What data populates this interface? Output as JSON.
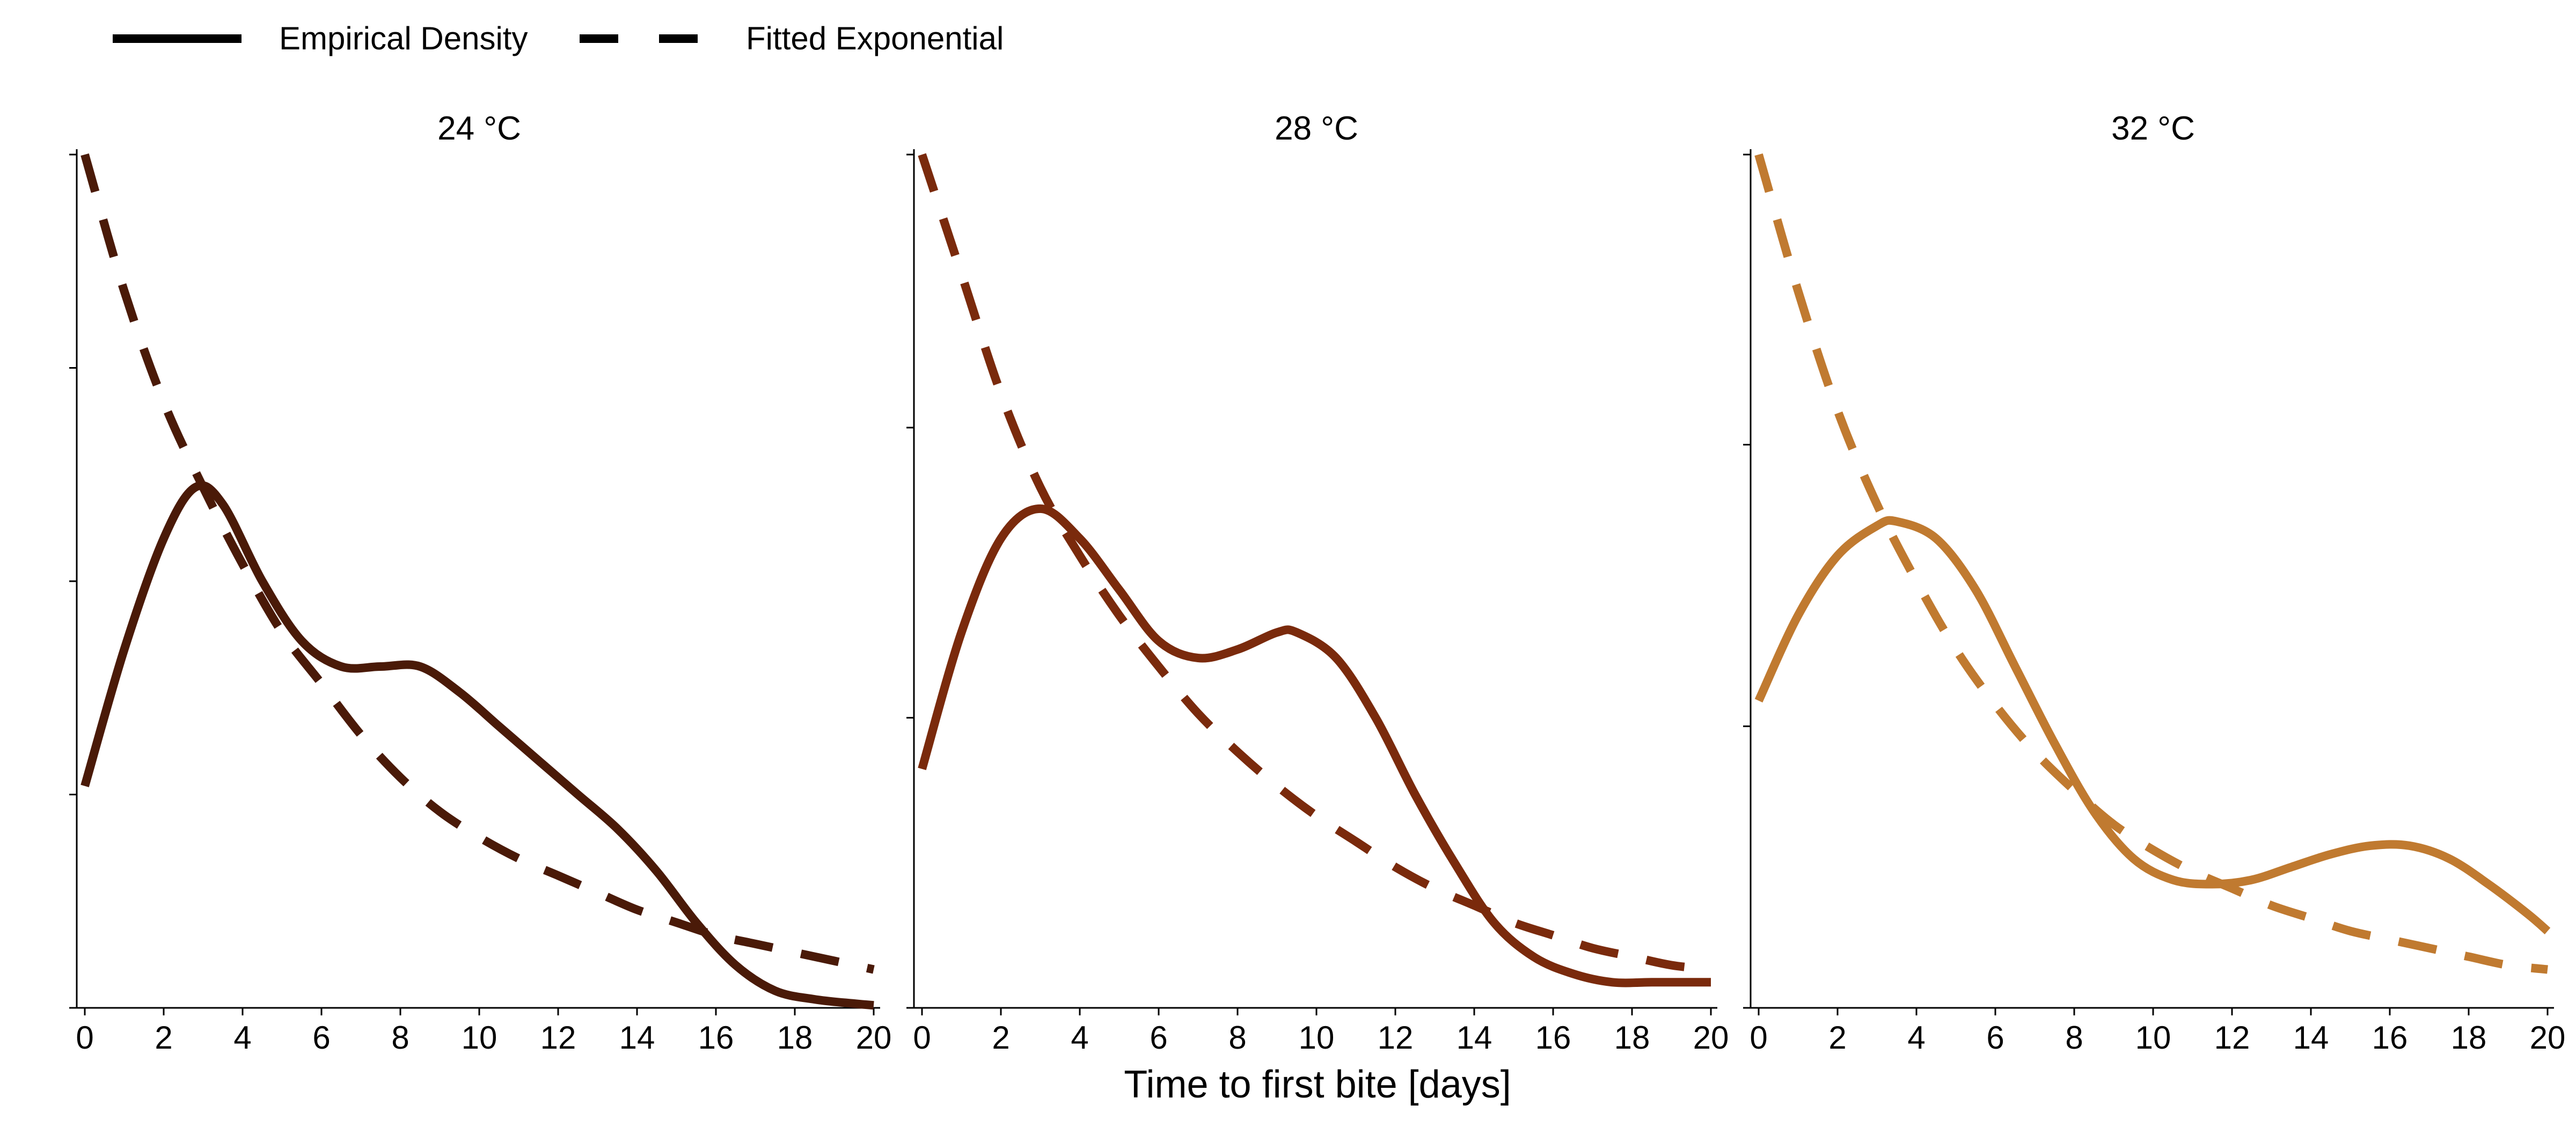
{
  "legend": {
    "solid_label": "Empirical Density",
    "dashed_label": "Fitted Exponential",
    "placement": "top-left"
  },
  "xlabel": "Time to first bite [days]",
  "chart_data": [
    {
      "type": "line",
      "title": "24 °C",
      "color": "#4a1a08",
      "x_ticks": [
        0,
        2,
        4,
        6,
        8,
        10,
        12,
        14,
        16,
        18,
        20
      ],
      "xlim": [
        0,
        20
      ],
      "ylim": [
        0,
        1.0
      ],
      "y_ticks": [
        0,
        0.25,
        0.5,
        0.75,
        1.0
      ],
      "series": [
        {
          "style": "solid",
          "x": [
            0,
            1,
            2,
            2.8,
            3.5,
            4.5,
            5.5,
            6.5,
            7.5,
            8.5,
            9.5,
            10.5,
            11.5,
            12.5,
            13.5,
            14.5,
            15.5,
            16.5,
            17.5,
            18.5,
            19.5,
            20
          ],
          "y": [
            0.26,
            0.42,
            0.55,
            0.61,
            0.59,
            0.5,
            0.43,
            0.4,
            0.4,
            0.4,
            0.37,
            0.33,
            0.29,
            0.25,
            0.21,
            0.16,
            0.1,
            0.05,
            0.02,
            0.01,
            0.005,
            0.003
          ]
        },
        {
          "style": "dashed",
          "x": [
            0,
            1,
            2,
            3,
            4,
            5,
            6,
            7,
            8,
            9,
            10,
            11,
            12,
            13,
            14,
            15,
            16,
            17,
            18,
            19,
            20
          ],
          "y": [
            1.0,
            0.84,
            0.71,
            0.61,
            0.52,
            0.44,
            0.38,
            0.32,
            0.27,
            0.23,
            0.2,
            0.175,
            0.155,
            0.135,
            0.115,
            0.1,
            0.085,
            0.075,
            0.065,
            0.055,
            0.045
          ]
        }
      ]
    },
    {
      "type": "line",
      "title": "28 °C",
      "color": "#7a2a0c",
      "x_ticks": [
        0,
        2,
        4,
        6,
        8,
        10,
        12,
        14,
        16,
        18,
        20
      ],
      "xlim": [
        0,
        20
      ],
      "ylim": [
        0,
        1.0
      ],
      "y_ticks": [
        0,
        0.34,
        0.68,
        1.0
      ],
      "series": [
        {
          "style": "solid",
          "x": [
            0,
            1,
            2,
            3,
            4,
            5,
            6,
            7,
            8,
            9,
            9.5,
            10.5,
            11.5,
            12.5,
            13.5,
            14.5,
            15.5,
            16.5,
            17.5,
            18.5,
            19.5,
            20
          ],
          "y": [
            0.28,
            0.44,
            0.55,
            0.585,
            0.55,
            0.49,
            0.43,
            0.41,
            0.42,
            0.44,
            0.44,
            0.41,
            0.34,
            0.25,
            0.17,
            0.1,
            0.06,
            0.04,
            0.03,
            0.03,
            0.03,
            0.03
          ]
        },
        {
          "style": "dashed",
          "x": [
            0,
            1,
            2,
            3,
            4,
            5,
            6,
            7,
            8,
            9,
            10,
            11,
            12,
            13,
            14,
            15,
            16,
            17,
            18,
            19,
            20
          ],
          "y": [
            1.0,
            0.86,
            0.72,
            0.61,
            0.53,
            0.46,
            0.4,
            0.345,
            0.3,
            0.26,
            0.225,
            0.195,
            0.165,
            0.14,
            0.12,
            0.1,
            0.085,
            0.07,
            0.06,
            0.05,
            0.045
          ]
        }
      ]
    },
    {
      "type": "line",
      "title": "32 °C",
      "color": "#c07a30",
      "x_ticks": [
        0,
        2,
        4,
        6,
        8,
        10,
        12,
        14,
        16,
        18,
        20
      ],
      "xlim": [
        0,
        20
      ],
      "ylim": [
        0,
        1.0
      ],
      "y_ticks": [
        0,
        0.33,
        0.66,
        1.0
      ],
      "series": [
        {
          "style": "solid",
          "x": [
            0,
            1,
            2,
            3,
            3.5,
            4.5,
            5.5,
            6.5,
            7.5,
            8.5,
            9.5,
            10.5,
            11.5,
            12.5,
            13.5,
            14.5,
            15.5,
            16.5,
            17.5,
            18.5,
            19.5,
            20
          ],
          "y": [
            0.36,
            0.46,
            0.53,
            0.565,
            0.57,
            0.55,
            0.49,
            0.4,
            0.31,
            0.23,
            0.175,
            0.15,
            0.145,
            0.15,
            0.165,
            0.18,
            0.19,
            0.19,
            0.175,
            0.145,
            0.11,
            0.09
          ]
        },
        {
          "style": "dashed",
          "x": [
            0,
            1,
            2,
            3,
            4,
            5,
            6,
            7,
            8,
            9,
            10,
            11,
            12,
            13,
            14,
            15,
            16,
            17,
            18,
            19,
            20
          ],
          "y": [
            1.0,
            0.84,
            0.7,
            0.59,
            0.5,
            0.42,
            0.355,
            0.3,
            0.255,
            0.215,
            0.185,
            0.16,
            0.14,
            0.12,
            0.105,
            0.09,
            0.08,
            0.07,
            0.06,
            0.05,
            0.045
          ]
        }
      ]
    }
  ]
}
